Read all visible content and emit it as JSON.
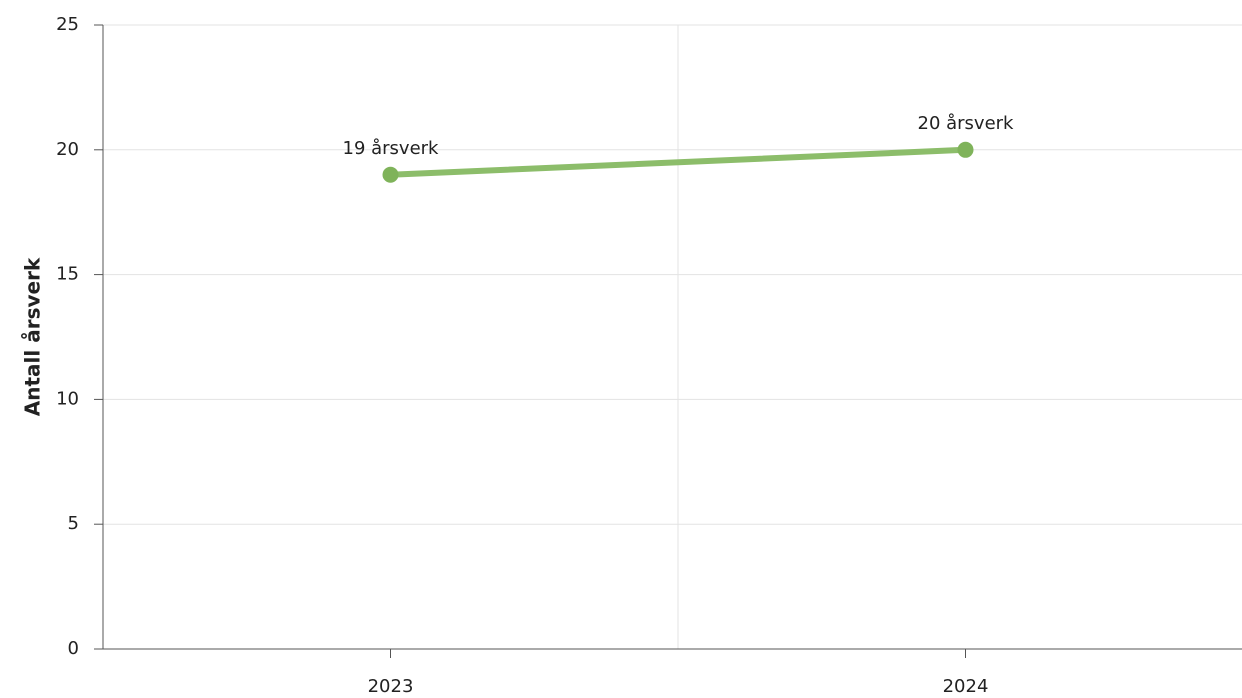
{
  "chart_data": {
    "type": "line",
    "y_label": "Antall årsverk",
    "categories": [
      "2023",
      "2024"
    ],
    "series": [
      {
        "name": "Antall årsverk",
        "color": "#8cbd6a",
        "marker_color": "#7fb35a",
        "values": [
          19,
          20
        ],
        "value_labels": [
          "19 årsverk",
          "20 årsverk"
        ]
      }
    ],
    "ylim": [
      0,
      25
    ],
    "yticks": [
      0,
      5,
      10,
      15,
      20,
      25
    ],
    "grid": true
  }
}
